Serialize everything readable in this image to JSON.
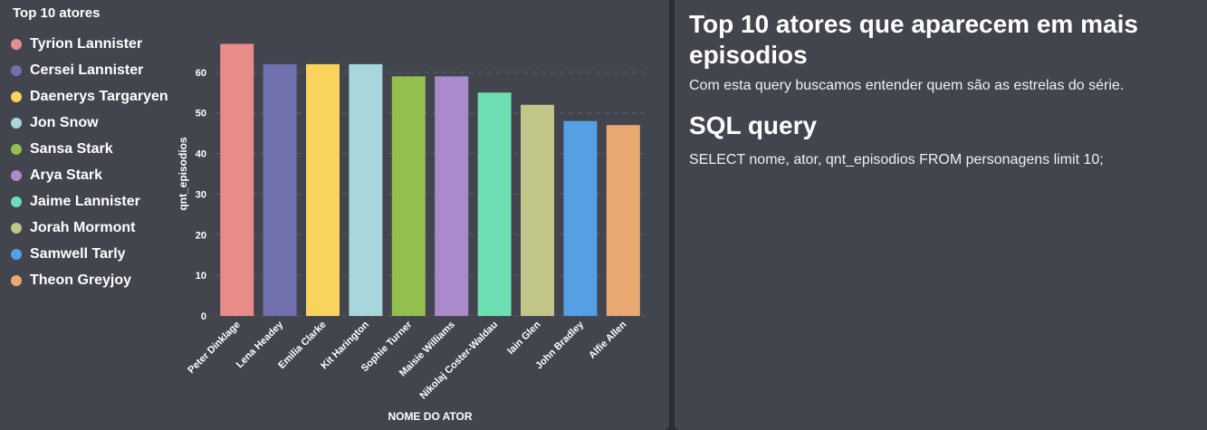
{
  "chart_card": {
    "title": "Top 10 atores",
    "legend": [
      {
        "label": "Tyrion Lannister",
        "color": "#e88c8a"
      },
      {
        "label": "Cersei Lannister",
        "color": "#7172ad"
      },
      {
        "label": "Daenerys Targaryen",
        "color": "#f9d45c"
      },
      {
        "label": "Jon Snow",
        "color": "#a7d7dc"
      },
      {
        "label": "Sansa Stark",
        "color": "#93bf4e"
      },
      {
        "label": "Arya Stark",
        "color": "#a98bcc"
      },
      {
        "label": "Jaime Lannister",
        "color": "#6ce0b2"
      },
      {
        "label": "Jorah Mormont",
        "color": "#c2c58a"
      },
      {
        "label": "Samwell Tarly",
        "color": "#559fe4"
      },
      {
        "label": "Theon Greyjoy",
        "color": "#eaa873"
      }
    ]
  },
  "chart_data": {
    "type": "bar",
    "title": "Top 10 atores",
    "xlabel": "NOME DO ATOR",
    "ylabel": "qnt_episodios",
    "ylim": [
      0,
      70
    ],
    "yticks": [
      0,
      10,
      20,
      30,
      40,
      50,
      60
    ],
    "grid": true,
    "categories": [
      "Peter Dinklage",
      "Lena Headey",
      "Emilia Clarke",
      "Kit Harington",
      "Sophie Turner",
      "Maisie Williams",
      "Nikolaj Coster-Waldau",
      "Iain Glen",
      "John Bradley",
      "Alfie Allen"
    ],
    "values": [
      67,
      62,
      62,
      62,
      59,
      59,
      55,
      52,
      48,
      47
    ],
    "colors": [
      "#e88c8a",
      "#7172ad",
      "#f9d45c",
      "#a7d7dc",
      "#93bf4e",
      "#a98bcc",
      "#6ce0b2",
      "#c2c58a",
      "#559fe4",
      "#eaa873"
    ]
  },
  "text_card": {
    "heading": "Top 10 atores que aparecem em mais episodios",
    "description": "Com esta query buscamos entender quem são as estrelas do série.",
    "subheading": "SQL query",
    "query": "SELECT nome, ator, qnt_episodios FROM personagens limit 10;"
  }
}
